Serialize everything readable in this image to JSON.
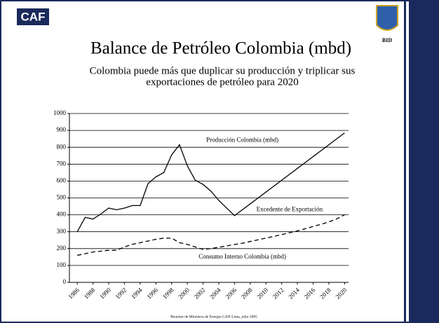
{
  "logos": {
    "left": "CAF",
    "right": "BID"
  },
  "footer": "Reunión de Ministros de Energía CAN Lima, julio 2005",
  "chart_data": {
    "type": "line",
    "title": "Balance de Petróleo Colombia (mbd)",
    "subtitle": [
      "Colombia puede más que duplicar su producción y triplicar sus",
      "exportaciones de petróleo para 2020"
    ],
    "annotations": [
      {
        "text": "Producción Colombia (mbd)",
        "x": 2007,
        "y": 840
      },
      {
        "text": "Excedente de Exportación",
        "x": 2013,
        "y": 430
      },
      {
        "text": "Consumo Interno Colombia (mbd)",
        "x": 2007,
        "y": 150
      }
    ],
    "x": [
      1986,
      1987,
      1988,
      1989,
      1990,
      1991,
      1992,
      1993,
      1994,
      1995,
      1996,
      1997,
      1998,
      1999,
      2000,
      2001,
      2002,
      2003,
      2004,
      2005,
      2006,
      2007,
      2008,
      2009,
      2010,
      2011,
      2012,
      2013,
      2014,
      2015,
      2016,
      2017,
      2018,
      2019,
      2020
    ],
    "series": [
      {
        "name": "Producción Colombia (mbd)",
        "color": "#000000",
        "style": "solid",
        "values": [
          300,
          385,
          375,
          405,
          440,
          430,
          440,
          455,
          455,
          585,
          625,
          650,
          755,
          815,
          690,
          605,
          580,
          540,
          485,
          440,
          395,
          430,
          465,
          500,
          535,
          570,
          605,
          640,
          675,
          710,
          745,
          780,
          815,
          850,
          885
        ]
      },
      {
        "name": "Consumo Interno Colombia (mbd)",
        "color": "#000000",
        "style": "dashed",
        "values": [
          160,
          170,
          180,
          185,
          190,
          190,
          210,
          225,
          235,
          245,
          255,
          262,
          262,
          235,
          225,
          210,
          195,
          200,
          208,
          216,
          224,
          232,
          242,
          252,
          262,
          272,
          283,
          294,
          305,
          318,
          331,
          344,
          358,
          376,
          400
        ]
      }
    ],
    "xlim": [
      1985,
      2020.5
    ],
    "xticks": [
      1986,
      1988,
      1990,
      1992,
      1994,
      1996,
      1998,
      2000,
      2002,
      2004,
      2006,
      2008,
      2010,
      2012,
      2014,
      2016,
      2018,
      2020
    ],
    "ylim": [
      0,
      1000
    ],
    "yticks": [
      0,
      100,
      200,
      300,
      400,
      500,
      600,
      700,
      800,
      900,
      1000
    ],
    "grid": true
  }
}
